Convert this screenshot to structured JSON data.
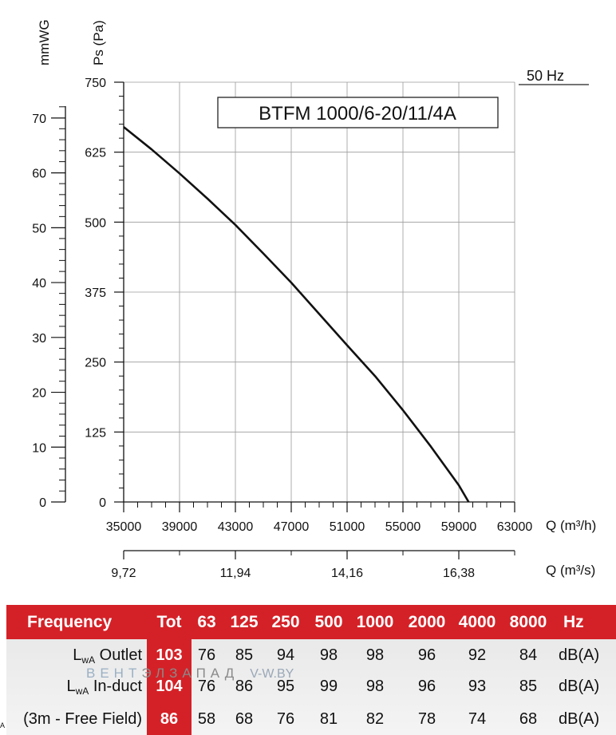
{
  "chart_data": {
    "type": "line",
    "title": "BTFM 1000/6-20/11/4A",
    "frequency_label": "50 Hz",
    "x_axis": {
      "label": "Q (m³/h)",
      "min": 35000,
      "max": 63000,
      "tick_labels": [
        "35000",
        "39000",
        "43000",
        "47000",
        "51000",
        "55000",
        "59000",
        "63000"
      ]
    },
    "x_axis_secondary": {
      "label": "Q (m³/s)",
      "tick_labels": [
        "9,72",
        "11,94",
        "14,16",
        "16,38"
      ],
      "tick_values_m3h": [
        35000,
        43000,
        51000,
        59000
      ]
    },
    "y_axis": {
      "label": "Ps (Pa)",
      "min": 0,
      "max": 750,
      "tick_labels": [
        "0",
        "125",
        "250",
        "375",
        "500",
        "625",
        "750"
      ]
    },
    "y_axis_secondary": {
      "label": "mmWG",
      "tick_labels": [
        "0",
        "10",
        "20",
        "30",
        "40",
        "50",
        "60",
        "70"
      ],
      "tick_values_pa": [
        0,
        98,
        196,
        294,
        392,
        490,
        588,
        686
      ]
    },
    "series": [
      {
        "x": [
          35000,
          37000,
          39000,
          41000,
          43000,
          45000,
          47000,
          49000,
          51000,
          53000,
          55000,
          57000,
          59000,
          59700
        ],
        "y": [
          670,
          630,
          587,
          542,
          495,
          444,
          392,
          336,
          280,
          225,
          164,
          99,
          30,
          0
        ]
      }
    ],
    "grid": true
  },
  "table": {
    "header_label": "Frequency",
    "columns": [
      "Tot",
      "63",
      "125",
      "250",
      "500",
      "1000",
      "2000",
      "4000",
      "8000",
      "Hz"
    ],
    "rows": [
      {
        "label_main": "L",
        "label_sub": "wA",
        "label_rest": " Outlet",
        "values": [
          "103",
          "76",
          "85",
          "94",
          "98",
          "98",
          "96",
          "92",
          "84"
        ],
        "unit": "dB(A)"
      },
      {
        "label_main": "L",
        "label_sub": "wA",
        "label_rest": " In-duct",
        "values": [
          "104",
          "76",
          "86",
          "95",
          "99",
          "98",
          "96",
          "93",
          "85"
        ],
        "unit": "dB(A)"
      },
      {
        "label_main": "(3m - Free Field)",
        "label_sub": "",
        "label_rest": "",
        "values": [
          "86",
          "58",
          "68",
          "76",
          "81",
          "82",
          "78",
          "74",
          "68"
        ],
        "unit": "dB(A)"
      }
    ],
    "row_marker": "A"
  },
  "watermark": {
    "part1": "ВЕНТ",
    "part2": "ЭЛЗАПАД",
    "part3": "V-W.BY"
  },
  "colors": {
    "accent_red": "#d42127",
    "table_bg": "#ececec",
    "curve": "#111111",
    "grid": "#9a9a9a"
  }
}
